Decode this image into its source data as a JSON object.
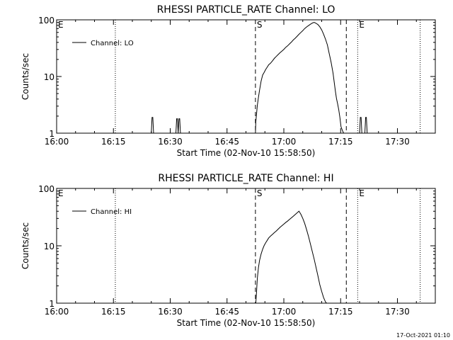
{
  "footer": {
    "timestamp": "17-Oct-2021 01:10"
  },
  "chart_data": [
    {
      "type": "line",
      "title": "RHESSI PARTICLE_RATE Channel: LO",
      "xlabel": "Start Time (02-Nov-10 15:58:50)",
      "ylabel": "Counts/sec",
      "y_scale": "log",
      "ylim": [
        1,
        100
      ],
      "xlim": [
        "16:00",
        "17:40"
      ],
      "x_ticks": [
        "16:00",
        "16:15",
        "16:30",
        "16:45",
        "17:00",
        "17:15",
        "17:30"
      ],
      "y_ticks": [
        "1",
        "10",
        "100"
      ],
      "legend": {
        "entries": [
          "Channel: LO"
        ],
        "placement": "top-left"
      },
      "grid": false,
      "markers": [
        {
          "label": "E",
          "time": "16:00",
          "style": "dotted"
        },
        {
          "label": "",
          "time": "16:15.5",
          "style": "dotted"
        },
        {
          "label": "S",
          "time": "16:52.5",
          "style": "dashed"
        },
        {
          "label": "",
          "time": "17:16.5",
          "style": "dashed"
        },
        {
          "label": "E",
          "time": "17:19.5",
          "style": "dotted"
        },
        {
          "label": "",
          "time": "17:36",
          "style": "dotted"
        }
      ],
      "series": [
        {
          "x": [
            0,
            25.0,
            25.2,
            25.4,
            25.6,
            31.5,
            31.7,
            31.9,
            32.1,
            32.3,
            32.5,
            32.7,
            52.5,
            52.6,
            52.8,
            53.0,
            53.3,
            53.6,
            54.0,
            54.4,
            54.8,
            55.2,
            55.6,
            56.0,
            56.5,
            57.0,
            57.5,
            58.0,
            58.5,
            59.0,
            59.5,
            60.0,
            60.5,
            61.0,
            61.5,
            62.0,
            62.5,
            63.0,
            63.5,
            64.0,
            64.5,
            65.0,
            65.5,
            66.0,
            66.5,
            67.0,
            67.5,
            68.0,
            68.5,
            69.0,
            69.5,
            70.0,
            70.5,
            71.0,
            71.5,
            72.0,
            72.5,
            73.0,
            73.3,
            73.6,
            73.9,
            74.2,
            74.5,
            74.8,
            75.1,
            75.5,
            75.8,
            76.1,
            80.0,
            80.2,
            80.4,
            80.6,
            81.4,
            81.6,
            81.8,
            82.0,
            100
          ],
          "y": [
            1,
            1,
            1.9,
            1.9,
            1,
            1,
            1.8,
            1.8,
            1,
            1.8,
            1.8,
            1,
            1,
            1.6,
            2.2,
            3.1,
            4.3,
            5.8,
            8.3,
            10.6,
            11.8,
            13.3,
            14.6,
            16.1,
            17.2,
            18.9,
            20.9,
            22.6,
            24.4,
            26.3,
            28.1,
            30.1,
            32.7,
            34.8,
            37.6,
            40.5,
            44.2,
            47.3,
            51.2,
            55.6,
            59.9,
            64.4,
            70.1,
            74.8,
            79.0,
            83.3,
            87.6,
            90.2,
            86.9,
            82.5,
            75.4,
            66.4,
            55.7,
            45.6,
            36.1,
            25.1,
            17.6,
            11.4,
            8.0,
            5.6,
            4.1,
            3.3,
            2.6,
            1.9,
            1.3,
            1.1,
            1,
            1,
            1,
            1.9,
            1.9,
            1,
            1,
            1.9,
            1.9,
            1,
            1
          ]
        }
      ]
    },
    {
      "type": "line",
      "title": "RHESSI PARTICLE_RATE Channel: HI",
      "xlabel": "Start Time (02-Nov-10 15:58:50)",
      "ylabel": "Counts/sec",
      "y_scale": "log",
      "ylim": [
        1,
        100
      ],
      "xlim": [
        "16:00",
        "17:40"
      ],
      "x_ticks": [
        "16:00",
        "16:15",
        "16:30",
        "16:45",
        "17:00",
        "17:15",
        "17:30"
      ],
      "y_ticks": [
        "1",
        "10",
        "100"
      ],
      "legend": {
        "entries": [
          "Channel: HI"
        ],
        "placement": "top-left"
      },
      "grid": false,
      "markers": [
        {
          "label": "E",
          "time": "16:00",
          "style": "dotted"
        },
        {
          "label": "",
          "time": "16:15.5",
          "style": "dotted"
        },
        {
          "label": "S",
          "time": "16:52.5",
          "style": "dashed"
        },
        {
          "label": "",
          "time": "17:16.5",
          "style": "dashed"
        },
        {
          "label": "E",
          "time": "17:19.5",
          "style": "dotted"
        },
        {
          "label": "",
          "time": "17:36",
          "style": "dotted"
        }
      ],
      "series": [
        {
          "x": [
            52.6,
            52.8,
            53.0,
            53.3,
            53.6,
            54.0,
            54.4,
            54.8,
            55.2,
            55.6,
            56.0,
            56.5,
            57.0,
            57.5,
            58.0,
            58.5,
            59.0,
            59.5,
            60.0,
            60.5,
            61.0,
            61.5,
            62.0,
            62.5,
            63.0,
            63.5,
            64.0,
            64.5,
            65.0,
            65.5,
            66.0,
            66.5,
            67.0,
            67.5,
            68.0,
            68.5,
            69.0,
            69.5,
            70.0,
            70.5,
            71.0,
            71.3
          ],
          "y": [
            1.0,
            1.6,
            2.7,
            4.2,
            5.6,
            7.2,
            8.7,
            10.1,
            11.3,
            12.4,
            13.7,
            14.8,
            15.8,
            17.0,
            18.1,
            19.5,
            21.0,
            22.4,
            23.9,
            25.5,
            27.0,
            28.8,
            30.7,
            32.8,
            35.1,
            37.5,
            40.1,
            35.4,
            30.0,
            24.6,
            19.2,
            14.7,
            10.9,
            8.0,
            5.9,
            4.2,
            3.0,
            2.1,
            1.6,
            1.25,
            1.05,
            1.0
          ]
        }
      ]
    }
  ]
}
